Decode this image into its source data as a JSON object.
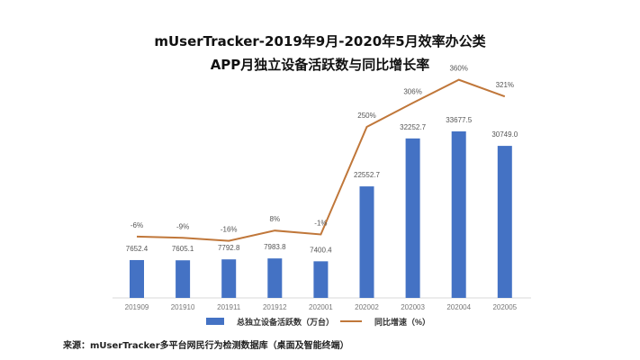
{
  "chart_data": {
    "type": "bar+line",
    "title": "mUserTracker-2019年9月-2020年5月效率办公类",
    "subtitle": "APP月独立设备活跃数与同比增长率",
    "categories": [
      "201909",
      "201910",
      "201911",
      "201912",
      "202001",
      "202002",
      "202003",
      "202004",
      "202005"
    ],
    "series": [
      {
        "name": "总独立设备活跃数（万台）",
        "type": "bar",
        "color": "#4472C4",
        "values": [
          7652.4,
          7605.1,
          7792.8,
          7983.8,
          7400.4,
          22552.7,
          32252.7,
          33677.5,
          30749.0
        ],
        "labels": [
          "7652.4",
          "7605.1",
          "7792.8",
          "7983.8",
          "7400.4",
          "22552.7",
          "32252.7",
          "33677.5",
          "30749.0"
        ]
      },
      {
        "name": "同比增速（%）",
        "type": "line",
        "color": "#C0773A",
        "values": [
          -6,
          -9,
          -16,
          8,
          -1,
          250,
          306,
          360,
          321
        ],
        "labels": [
          "-6%",
          "-9%",
          "-16%",
          "8%",
          "-1%",
          "250%",
          "306%",
          "360%",
          "321%"
        ]
      }
    ],
    "grid": false,
    "legend": "bottom"
  },
  "source": "来源：mUserTracker多平台网民行为检测数据库（桌面及智能终端）"
}
